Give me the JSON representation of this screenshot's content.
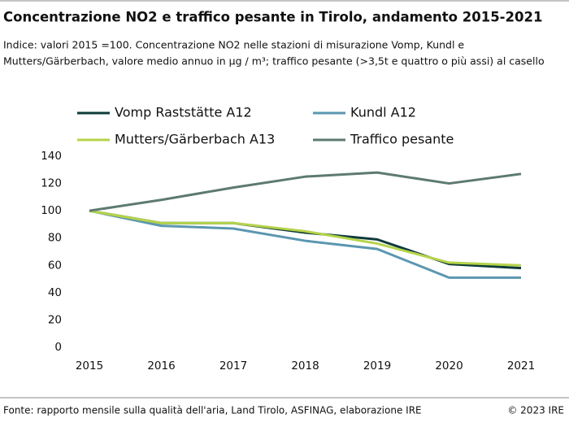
{
  "chart_data": {
    "type": "line",
    "title": "Concentrazione NO2 e traffico pesante in Tirolo, andamento 2015-2021",
    "subtitle": [
      "Indice: valori 2015 =100. Concentrazione NO2 nelle stazioni di misurazione Vomp, Kundl e",
      "Mutters/Gärberbach, valore medio annuo in µg / m³; traffico pesante (>3,5t e quattro o più assi) al casello"
    ],
    "categories": [
      "2015",
      "2016",
      "2017",
      "2018",
      "2019",
      "2020",
      "2021"
    ],
    "series": [
      {
        "name": "Vomp Raststätte A12",
        "color": "#0e3b3a",
        "values": [
          100,
          91,
          91,
          84,
          79,
          61,
          58
        ]
      },
      {
        "name": "Kundl A12",
        "color": "#5b97b0",
        "values": [
          100,
          89,
          87,
          78,
          72,
          51,
          51
        ]
      },
      {
        "name": "Mutters/Gärberbach A13",
        "color": "#b5d34a",
        "values": [
          100,
          91,
          91,
          85,
          76,
          62,
          60
        ]
      },
      {
        "name": "Traffico pesante",
        "color": "#5d7a70",
        "values": [
          100,
          108,
          117,
          125,
          128,
          120,
          127
        ]
      }
    ],
    "ylim": [
      0,
      140
    ],
    "yticks": [
      0,
      20,
      40,
      60,
      80,
      100,
      120,
      140
    ],
    "grid": false,
    "legend": "top",
    "source": "Fonte: rapporto mensile sulla qualità dell'aria, Land Tirolo, ASFINAG, elaborazione IRE",
    "copyright": "© 2023 IRE"
  }
}
